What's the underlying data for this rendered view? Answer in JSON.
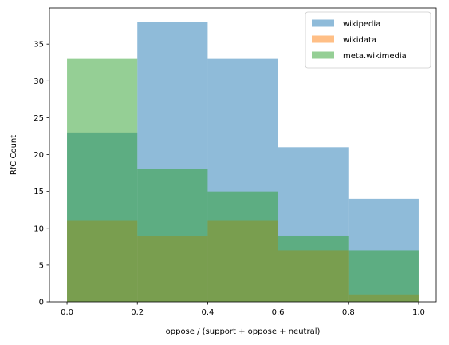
{
  "chart_data": {
    "type": "bar",
    "subtype": "overlapping-histogram",
    "xlabel": "oppose / (support + oppose + neutral)",
    "ylabel": "RfC Count",
    "xlim": [
      -0.05,
      1.05
    ],
    "ylim": [
      0,
      39.9
    ],
    "xticks": [
      "0.0",
      "0.2",
      "0.4",
      "0.6",
      "0.8",
      "1.0"
    ],
    "yticks": [
      "0",
      "5",
      "10",
      "15",
      "20",
      "25",
      "30",
      "35"
    ],
    "bin_edges": [
      0.0,
      0.2,
      0.4,
      0.6,
      0.8,
      1.0
    ],
    "grid": false,
    "legend_position": "top-right",
    "series": [
      {
        "name": "wikipedia",
        "color": "#1f77b4",
        "opacity": 0.5,
        "values": [
          23,
          38,
          33,
          21,
          14
        ]
      },
      {
        "name": "wikidata",
        "color": "#ff7f0e",
        "opacity": 0.5,
        "values": [
          11,
          9,
          11,
          7,
          1
        ]
      },
      {
        "name": "meta.wikimedia",
        "color": "#2ca02c",
        "opacity": 0.5,
        "values": [
          33,
          18,
          15,
          9,
          7
        ]
      }
    ]
  }
}
